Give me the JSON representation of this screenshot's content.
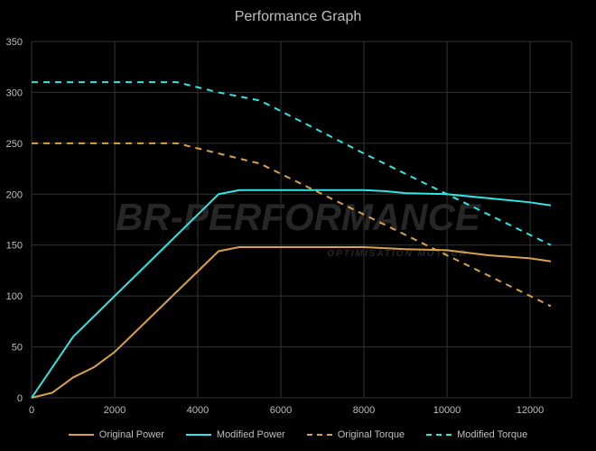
{
  "chart_data": {
    "type": "line",
    "title": "Performance Graph",
    "xlim": [
      0,
      13000
    ],
    "ylim": [
      0,
      350
    ],
    "xticks": [
      0,
      2000,
      4000,
      6000,
      8000,
      10000,
      12000
    ],
    "yticks": [
      0,
      50,
      100,
      150,
      200,
      250,
      300,
      350
    ],
    "grid": true,
    "legend_position": "bottom",
    "series": [
      {
        "name": "Original Power",
        "color": "#d9a24a",
        "style": "solid",
        "x": [
          0,
          500,
          1000,
          1500,
          2000,
          4500,
          5000,
          6000,
          7000,
          8000,
          8500,
          9000,
          10000,
          11000,
          12000,
          12500
        ],
        "y": [
          0,
          5,
          20,
          30,
          45,
          144,
          148,
          148,
          148,
          148,
          147,
          146,
          145,
          140,
          137,
          134
        ]
      },
      {
        "name": "Modified Power",
        "color": "#2ee6e6",
        "style": "solid",
        "x": [
          0,
          1000,
          2000,
          4500,
          5000,
          6000,
          7000,
          8000,
          8500,
          9000,
          10000,
          11000,
          12000,
          12500
        ],
        "y": [
          0,
          60,
          100,
          200,
          204,
          204,
          204,
          204,
          203,
          201,
          200,
          196,
          192,
          189
        ]
      },
      {
        "name": "Original Torque",
        "color": "#d9a24a",
        "style": "dashed",
        "x": [
          0,
          3500,
          4500,
          5500,
          8000,
          10000,
          12500
        ],
        "y": [
          250,
          250,
          240,
          230,
          180,
          140,
          90
        ]
      },
      {
        "name": "Modified Torque",
        "color": "#2ee6e6",
        "style": "dashed",
        "x": [
          0,
          3500,
          4500,
          5500,
          8000,
          10000,
          12500
        ],
        "y": [
          310,
          310,
          300,
          292,
          240,
          200,
          150
        ]
      }
    ]
  },
  "watermark": {
    "logo": "BR-PERFORMANCE",
    "tagline": "OPTIMISATION MOTEUR"
  }
}
